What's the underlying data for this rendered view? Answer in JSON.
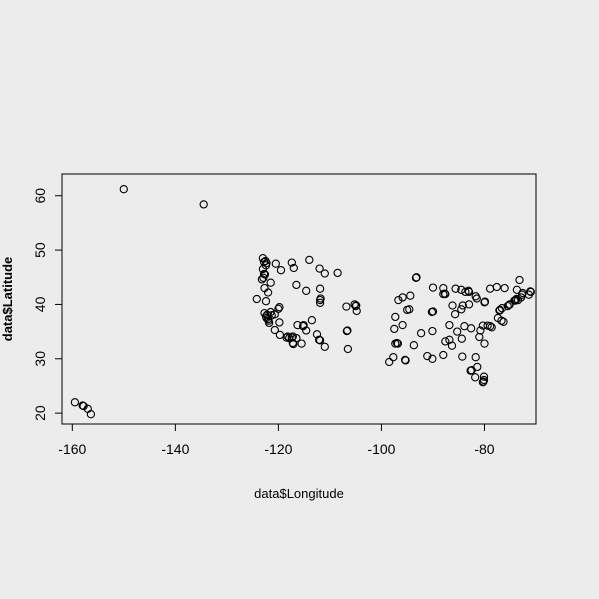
{
  "chart_data": {
    "type": "scatter",
    "title": "",
    "xlabel": "data$Longitude",
    "ylabel": "data$Latitude",
    "xlim": [
      -162,
      -70
    ],
    "ylim": [
      18,
      64
    ],
    "xticks": [
      -160,
      -140,
      -120,
      -100,
      -80
    ],
    "yticks": [
      20,
      30,
      40,
      50,
      60
    ],
    "xtick_labels": [
      "-160",
      "-140",
      "-120",
      "-100",
      "-80"
    ],
    "ytick_labels": [
      "20",
      "30",
      "40",
      "50",
      "60"
    ],
    "grid": false,
    "legend": "none",
    "marker": "open-circle",
    "series": [
      {
        "points": [
          [
            -150.0,
            61.2
          ],
          [
            -134.5,
            58.4
          ],
          [
            -159.5,
            22.0
          ],
          [
            -158.0,
            21.4
          ],
          [
            -157.8,
            21.3
          ],
          [
            -157.0,
            20.8
          ],
          [
            -156.4,
            19.8
          ],
          [
            -123.0,
            48.5
          ],
          [
            -122.8,
            47.8
          ],
          [
            -122.5,
            48.0
          ],
          [
            -122.3,
            47.6
          ],
          [
            -122.4,
            47.2
          ],
          [
            -123.0,
            46.5
          ],
          [
            -122.8,
            45.6
          ],
          [
            -122.6,
            45.5
          ],
          [
            -122.9,
            44.9
          ],
          [
            -123.2,
            44.6
          ],
          [
            -122.7,
            43.0
          ],
          [
            -122.0,
            42.2
          ],
          [
            -121.5,
            44.0
          ],
          [
            -120.5,
            47.5
          ],
          [
            -119.5,
            46.3
          ],
          [
            -117.4,
            47.7
          ],
          [
            -117.0,
            46.7
          ],
          [
            -116.5,
            43.6
          ],
          [
            -114.0,
            48.2
          ],
          [
            -112.0,
            46.6
          ],
          [
            -111.0,
            45.7
          ],
          [
            -108.5,
            45.8
          ],
          [
            -124.2,
            41.0
          ],
          [
            -122.4,
            40.6
          ],
          [
            -121.5,
            38.6
          ],
          [
            -122.4,
            37.8
          ],
          [
            -122.3,
            37.5
          ],
          [
            -122.0,
            37.3
          ],
          [
            -121.9,
            37.0
          ],
          [
            -121.8,
            36.6
          ],
          [
            -122.7,
            38.4
          ],
          [
            -122.2,
            38.1
          ],
          [
            -121.3,
            38.0
          ],
          [
            -120.7,
            38.2
          ],
          [
            -120.0,
            39.2
          ],
          [
            -119.8,
            39.5
          ],
          [
            -119.8,
            36.7
          ],
          [
            -120.7,
            35.3
          ],
          [
            -119.7,
            34.4
          ],
          [
            -118.2,
            34.1
          ],
          [
            -118.4,
            33.9
          ],
          [
            -117.9,
            33.8
          ],
          [
            -117.2,
            34.1
          ],
          [
            -117.4,
            33.9
          ],
          [
            -117.1,
            32.7
          ],
          [
            -117.2,
            32.9
          ],
          [
            -116.5,
            33.8
          ],
          [
            -115.5,
            32.8
          ],
          [
            -116.3,
            36.2
          ],
          [
            -115.1,
            36.2
          ],
          [
            -115.2,
            36.0
          ],
          [
            -114.6,
            35.2
          ],
          [
            -112.1,
            33.5
          ],
          [
            -111.9,
            33.4
          ],
          [
            -111.0,
            32.2
          ],
          [
            -112.5,
            34.5
          ],
          [
            -111.9,
            40.8
          ],
          [
            -111.8,
            41.1
          ],
          [
            -111.9,
            40.3
          ],
          [
            -111.9,
            42.9
          ],
          [
            -113.5,
            37.1
          ],
          [
            -114.6,
            42.5
          ],
          [
            -106.7,
            35.1
          ],
          [
            -106.6,
            35.2
          ],
          [
            -106.5,
            31.8
          ],
          [
            -106.8,
            39.6
          ],
          [
            -105.0,
            39.7
          ],
          [
            -104.9,
            39.8
          ],
          [
            -104.8,
            38.8
          ],
          [
            -105.2,
            40.0
          ],
          [
            -98.5,
            29.4
          ],
          [
            -97.7,
            30.3
          ],
          [
            -97.3,
            32.8
          ],
          [
            -96.8,
            32.8
          ],
          [
            -97.0,
            32.9
          ],
          [
            -95.4,
            29.8
          ],
          [
            -95.3,
            29.7
          ],
          [
            -96.7,
            40.8
          ],
          [
            -95.9,
            41.3
          ],
          [
            -95.0,
            39.0
          ],
          [
            -94.6,
            39.1
          ],
          [
            -94.4,
            41.6
          ],
          [
            -93.3,
            44.9
          ],
          [
            -93.2,
            45.0
          ],
          [
            -92.3,
            34.7
          ],
          [
            -90.1,
            35.1
          ],
          [
            -90.2,
            38.6
          ],
          [
            -90.0,
            38.7
          ],
          [
            -90.0,
            43.1
          ],
          [
            -88.0,
            41.9
          ],
          [
            -87.6,
            41.9
          ],
          [
            -87.7,
            42.0
          ],
          [
            -88.0,
            43.0
          ],
          [
            -86.8,
            36.2
          ],
          [
            -86.8,
            33.5
          ],
          [
            -86.3,
            32.4
          ],
          [
            -87.6,
            33.2
          ],
          [
            -86.2,
            39.8
          ],
          [
            -85.7,
            38.2
          ],
          [
            -84.5,
            39.1
          ],
          [
            -84.4,
            33.7
          ],
          [
            -84.2,
            39.8
          ],
          [
            -83.0,
            40.0
          ],
          [
            -83.0,
            42.3
          ],
          [
            -83.1,
            42.5
          ],
          [
            -83.7,
            42.3
          ],
          [
            -85.6,
            42.9
          ],
          [
            -84.5,
            42.7
          ],
          [
            -84.3,
            30.4
          ],
          [
            -82.5,
            27.9
          ],
          [
            -82.7,
            27.8
          ],
          [
            -81.4,
            28.5
          ],
          [
            -81.7,
            30.3
          ],
          [
            -80.1,
            26.1
          ],
          [
            -80.2,
            25.8
          ],
          [
            -80.3,
            25.7
          ],
          [
            -80.1,
            26.7
          ],
          [
            -81.8,
            26.6
          ],
          [
            -80.0,
            32.8
          ],
          [
            -81.0,
            34.0
          ],
          [
            -80.8,
            35.2
          ],
          [
            -78.6,
            35.8
          ],
          [
            -78.9,
            36.0
          ],
          [
            -77.4,
            37.5
          ],
          [
            -76.3,
            36.8
          ],
          [
            -77.0,
            38.9
          ],
          [
            -77.1,
            38.9
          ],
          [
            -76.6,
            39.3
          ],
          [
            -75.2,
            39.9
          ],
          [
            -75.1,
            40.0
          ],
          [
            -74.0,
            40.7
          ],
          [
            -73.9,
            40.8
          ],
          [
            -74.2,
            40.7
          ],
          [
            -73.8,
            41.0
          ],
          [
            -73.5,
            40.8
          ],
          [
            -72.9,
            41.3
          ],
          [
            -72.7,
            41.8
          ],
          [
            -71.4,
            41.8
          ],
          [
            -71.1,
            42.4
          ],
          [
            -71.0,
            42.3
          ],
          [
            -72.6,
            42.1
          ],
          [
            -73.7,
            42.7
          ],
          [
            -73.2,
            44.5
          ],
          [
            -76.1,
            43.0
          ],
          [
            -77.6,
            43.2
          ],
          [
            -78.9,
            42.9
          ],
          [
            -80.0,
            40.4
          ],
          [
            -79.9,
            40.5
          ],
          [
            -81.7,
            41.5
          ],
          [
            -81.5,
            41.1
          ],
          [
            -79.4,
            36.1
          ],
          [
            -80.3,
            36.1
          ],
          [
            -82.6,
            35.6
          ],
          [
            -83.9,
            36.0
          ],
          [
            -85.3,
            35.0
          ],
          [
            -88.0,
            30.7
          ],
          [
            -90.1,
            30.0
          ],
          [
            -91.1,
            30.5
          ],
          [
            -93.7,
            32.5
          ],
          [
            -95.9,
            36.2
          ],
          [
            -97.5,
            35.5
          ],
          [
            -97.3,
            37.7
          ],
          [
            -76.7,
            37.0
          ],
          [
            -75.5,
            39.7
          ],
          [
            -77.0,
            39.0
          ]
        ]
      }
    ]
  }
}
